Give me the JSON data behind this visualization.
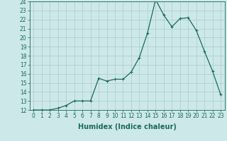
{
  "xlabel": "Humidex (Indice chaleur)",
  "ylabel": "",
  "x_values": [
    0,
    1,
    2,
    3,
    4,
    5,
    6,
    7,
    8,
    9,
    10,
    11,
    12,
    13,
    14,
    15,
    16,
    17,
    18,
    19,
    20,
    21,
    22,
    23
  ],
  "y_values": [
    12,
    12,
    12,
    12.2,
    12.5,
    13,
    13,
    13,
    15.5,
    15.2,
    15.4,
    15.4,
    16.2,
    17.8,
    20.5,
    24.2,
    22.5,
    21.2,
    22.1,
    22.2,
    20.8,
    18.5,
    16.3,
    13.7
  ],
  "ylim": [
    12,
    24
  ],
  "xlim": [
    -0.5,
    23.5
  ],
  "yticks": [
    12,
    13,
    14,
    15,
    16,
    17,
    18,
    19,
    20,
    21,
    22,
    23,
    24
  ],
  "xticks": [
    0,
    1,
    2,
    3,
    4,
    5,
    6,
    7,
    8,
    9,
    10,
    11,
    12,
    13,
    14,
    15,
    16,
    17,
    18,
    19,
    20,
    21,
    22,
    23
  ],
  "line_color": "#1a6b5a",
  "marker": "+",
  "bg_color": "#cde8e8",
  "grid_color": "#aacccc",
  "title_fontsize": 7,
  "label_fontsize": 7,
  "tick_fontsize": 5.5
}
